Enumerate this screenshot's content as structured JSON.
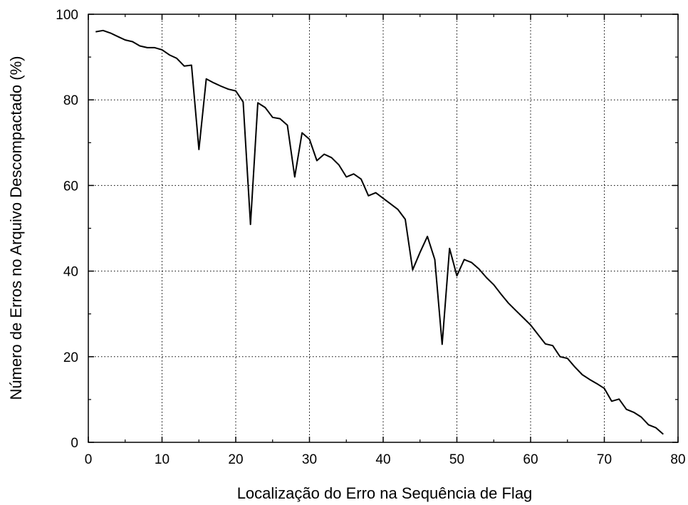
{
  "chart_data": {
    "type": "line",
    "xlabel": "Localização do Erro na Sequência de Flag",
    "ylabel": "Número de Erros no Arquivo Descompactado (%)",
    "xlim": [
      0,
      80
    ],
    "ylim": [
      0,
      100
    ],
    "x_ticks": [
      0,
      10,
      20,
      30,
      40,
      50,
      60,
      70,
      80
    ],
    "y_ticks": [
      0,
      20,
      40,
      60,
      80,
      100
    ],
    "x_tick_labels": [
      "0",
      "10",
      "20",
      "30",
      "40",
      "50",
      "60",
      "70",
      "80"
    ],
    "y_tick_labels": [
      "0",
      "20",
      "40",
      "60",
      "80",
      "100"
    ],
    "grid": true,
    "line_color": "#000000",
    "series": [
      {
        "x": [
          1,
          2,
          3,
          4,
          5,
          6,
          7,
          8,
          9,
          10,
          11,
          12,
          13,
          14,
          15,
          16,
          17,
          18,
          19,
          20,
          21,
          22,
          23,
          24,
          25,
          26,
          27,
          28,
          29,
          30,
          31,
          32,
          33,
          34,
          35,
          36,
          37,
          38,
          39,
          40,
          41,
          42,
          43,
          44,
          45,
          46,
          47,
          48,
          49,
          50,
          51,
          52,
          53,
          54,
          55,
          56,
          57,
          58,
          59,
          60,
          61,
          62,
          63,
          64,
          65,
          66,
          67,
          68,
          69,
          70,
          71,
          72,
          73,
          74,
          75,
          76,
          77,
          78
        ],
        "y": [
          95.9,
          96.2,
          95.6,
          94.8,
          94.0,
          93.6,
          92.6,
          92.2,
          92.2,
          91.7,
          90.5,
          89.7,
          87.9,
          88.1,
          68.4,
          84.9,
          84.0,
          83.2,
          82.5,
          82.1,
          79.5,
          50.9,
          79.3,
          78.2,
          75.9,
          75.6,
          74.1,
          62.0,
          72.3,
          70.8,
          65.8,
          67.3,
          66.5,
          64.8,
          62.0,
          62.7,
          61.5,
          57.6,
          58.3,
          57.0,
          55.7,
          54.4,
          52.1,
          40.3,
          44.4,
          48.1,
          42.7,
          22.9,
          45.3,
          38.9,
          42.7,
          42.0,
          40.5,
          38.5,
          36.8,
          34.6,
          32.5,
          30.8,
          29.1,
          27.4,
          25.2,
          23.0,
          22.6,
          20.0,
          19.6,
          17.6,
          15.8,
          14.7,
          13.7,
          12.6,
          9.6,
          10.1,
          7.7,
          7.0,
          5.9,
          4.1,
          3.4,
          1.9
        ]
      }
    ]
  }
}
